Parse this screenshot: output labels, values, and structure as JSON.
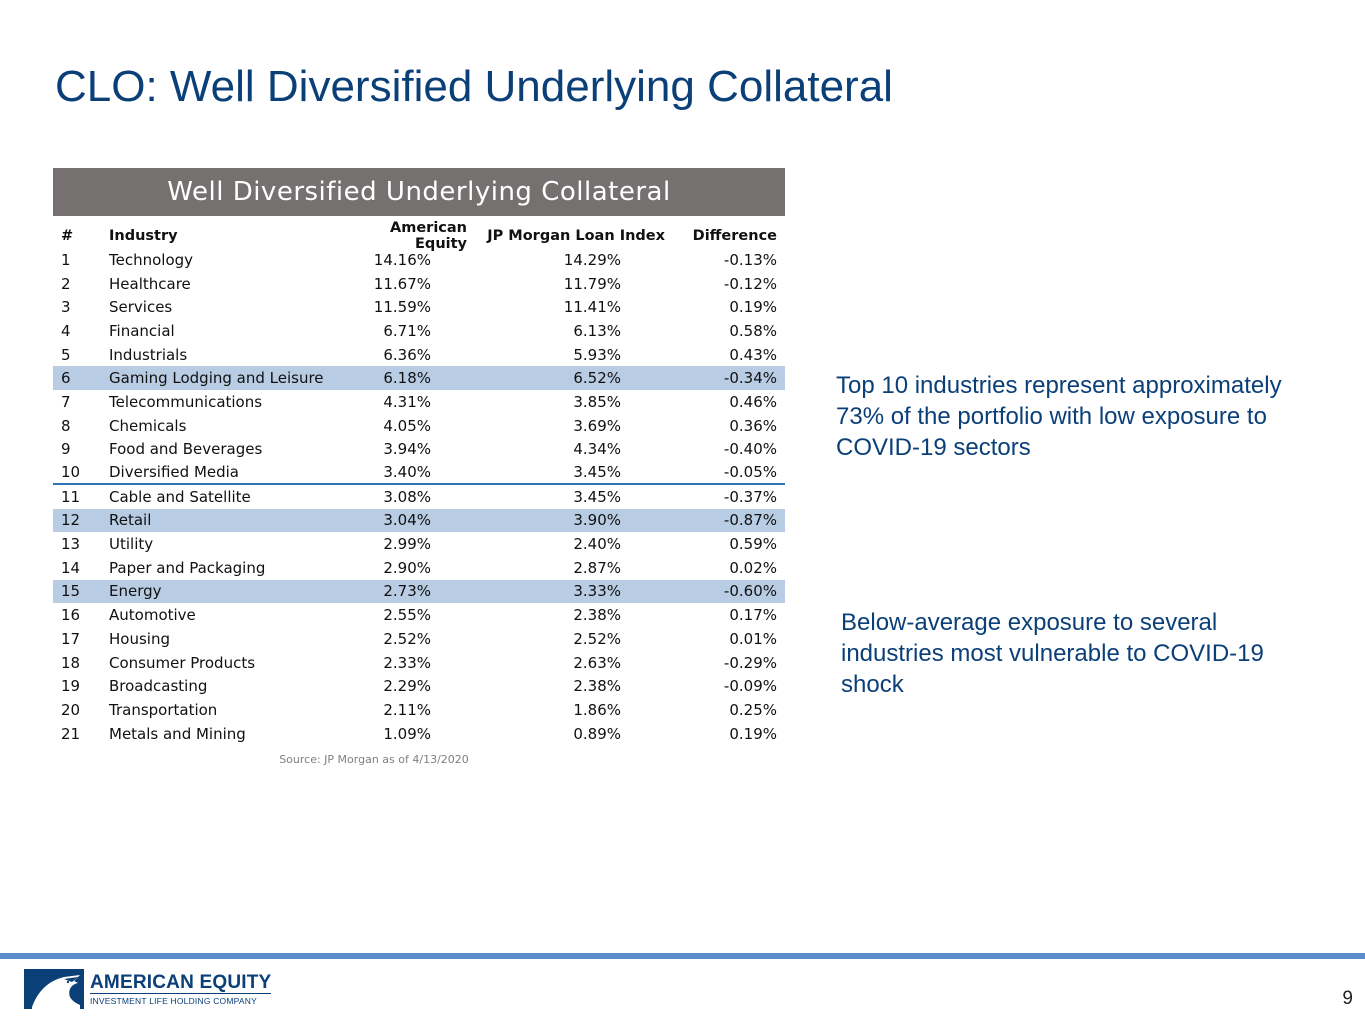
{
  "slide": {
    "title": "CLO: Well Diversified Underlying Collateral",
    "page_number": "9"
  },
  "table": {
    "header": "Well Diversified Underlying Collateral",
    "columns": [
      "#",
      "Industry",
      "American Equity",
      "JP Morgan Loan Index",
      "Difference"
    ],
    "rows": [
      [
        "1",
        "Technology",
        "14.16%",
        "14.29%",
        "-0.13%"
      ],
      [
        "2",
        "Healthcare",
        "11.67%",
        "11.79%",
        "-0.12%"
      ],
      [
        "3",
        "Services",
        "11.59%",
        "11.41%",
        "0.19%"
      ],
      [
        "4",
        "Financial",
        "6.71%",
        "6.13%",
        "0.58%"
      ],
      [
        "5",
        "Industrials",
        "6.36%",
        "5.93%",
        "0.43%"
      ],
      [
        "6",
        "Gaming Lodging and Leisure",
        "6.18%",
        "6.52%",
        "-0.34%"
      ],
      [
        "7",
        "Telecommunications",
        "4.31%",
        "3.85%",
        "0.46%"
      ],
      [
        "8",
        "Chemicals",
        "4.05%",
        "3.69%",
        "0.36%"
      ],
      [
        "9",
        "Food and Beverages",
        "3.94%",
        "4.34%",
        "-0.40%"
      ],
      [
        "10",
        "Diversified Media",
        "3.40%",
        "3.45%",
        "-0.05%"
      ],
      [
        "11",
        "Cable and Satellite",
        "3.08%",
        "3.45%",
        "-0.37%"
      ],
      [
        "12",
        "Retail",
        "3.04%",
        "3.90%",
        "-0.87%"
      ],
      [
        "13",
        "Utility",
        "2.99%",
        "2.40%",
        "0.59%"
      ],
      [
        "14",
        "Paper and Packaging",
        "2.90%",
        "2.87%",
        "0.02%"
      ],
      [
        "15",
        "Energy",
        "2.73%",
        "3.33%",
        "-0.60%"
      ],
      [
        "16",
        "Automotive",
        "2.55%",
        "2.38%",
        "0.17%"
      ],
      [
        "17",
        "Housing",
        "2.52%",
        "2.52%",
        "0.01%"
      ],
      [
        "18",
        "Consumer Products",
        "2.33%",
        "2.63%",
        "-0.29%"
      ],
      [
        "19",
        "Broadcasting",
        "2.29%",
        "2.38%",
        "-0.09%"
      ],
      [
        "20",
        "Transportation",
        "2.11%",
        "1.86%",
        "0.25%"
      ],
      [
        "21",
        "Metals and Mining",
        "1.09%",
        "0.89%",
        "0.19%"
      ]
    ],
    "highlighted_rows": [
      "6",
      "12",
      "15"
    ],
    "separator_after_row": "10",
    "highlight_color": "#b8cce4",
    "source": "Source: JP Morgan as of 4/13/2020"
  },
  "callouts": {
    "top10": "Top 10 industries represent approximately 73% of the portfolio with low exposure to COVID-19 sectors",
    "below_average": "Below-average exposure to several industries most vulnerable to COVID-19 shock"
  },
  "logo": {
    "name": "AMERICAN EQUITY",
    "tagline": "INVESTMENT LIFE HOLDING COMPANY",
    "icon": "eagle-icon"
  },
  "colors": {
    "title_blue": "#0b3f78",
    "header_gray": "#767171",
    "footer_line": "#5b8ec9"
  }
}
